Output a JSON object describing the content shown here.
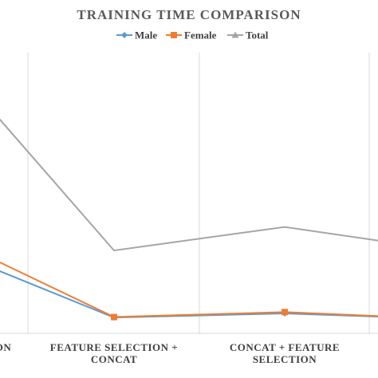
{
  "chart_data": {
    "type": "line",
    "title": "TRAINING TIME COMPARISON",
    "categories": [
      [
        "ON"
      ],
      [
        "FEATURE SELECTION +",
        "CONCAT"
      ],
      [
        "CONCAT + FEATURE",
        "SELECTION"
      ],
      [
        ""
      ]
    ],
    "series": [
      {
        "name": "Male",
        "color": "#5B9BD5",
        "marker": "diamond",
        "values": [
          14,
          3.5,
          4.4,
          3.7
        ]
      },
      {
        "name": "Female",
        "color": "#ED7D31",
        "marker": "square",
        "values": [
          16,
          3.6,
          4.7,
          3.8
        ]
      },
      {
        "name": "Total",
        "color": "#A5A5A5",
        "marker": "triangle",
        "values": [
          48,
          18.3,
          23.5,
          20.5
        ]
      }
    ],
    "ylim": [
      0,
      62
    ],
    "grid": "vertical",
    "legend_position": "top"
  }
}
